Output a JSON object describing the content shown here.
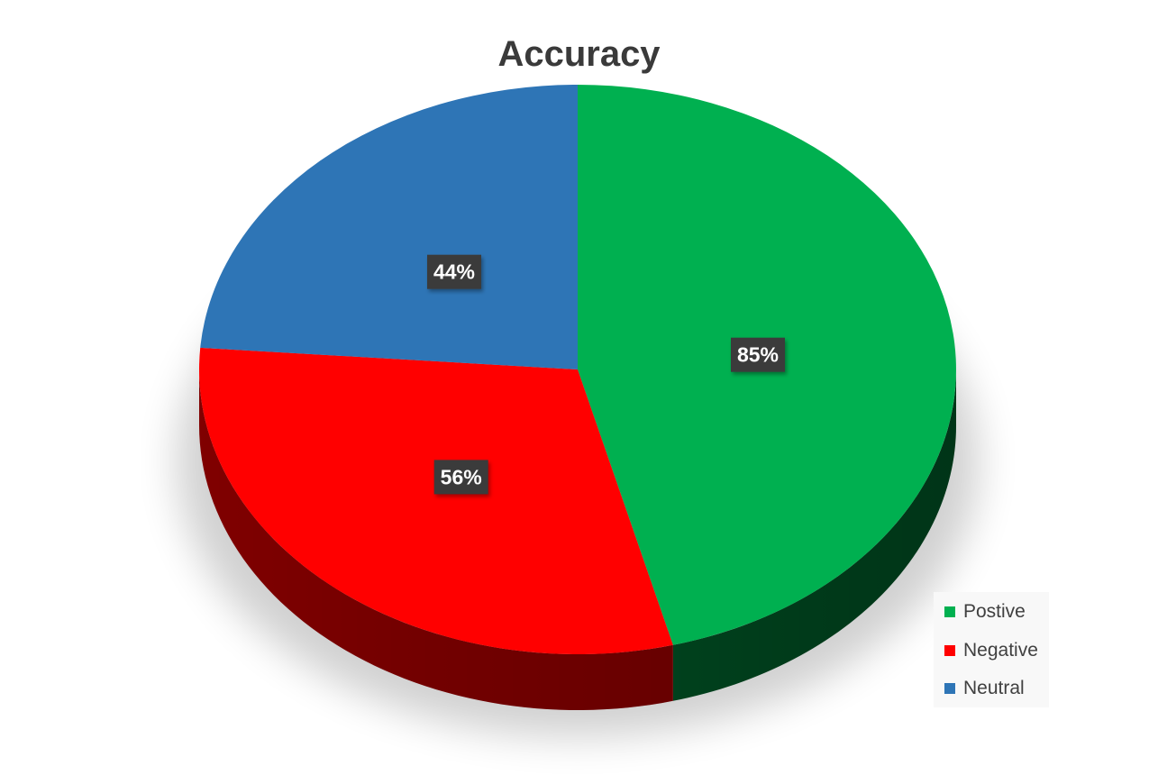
{
  "chart_data": {
    "type": "pie",
    "title": "Accuracy",
    "categories": [
      "Postive",
      "Negative",
      "Neutral"
    ],
    "values": [
      85,
      56,
      44
    ],
    "labels": [
      "85%",
      "56%",
      "44%"
    ],
    "colors": [
      "#00B050",
      "#FF0000",
      "#2E75B6"
    ],
    "side_colors": [
      "#00461F",
      "#8A0000",
      "#1B4A78"
    ],
    "legend_position": "bottom-right",
    "style": "3d"
  }
}
